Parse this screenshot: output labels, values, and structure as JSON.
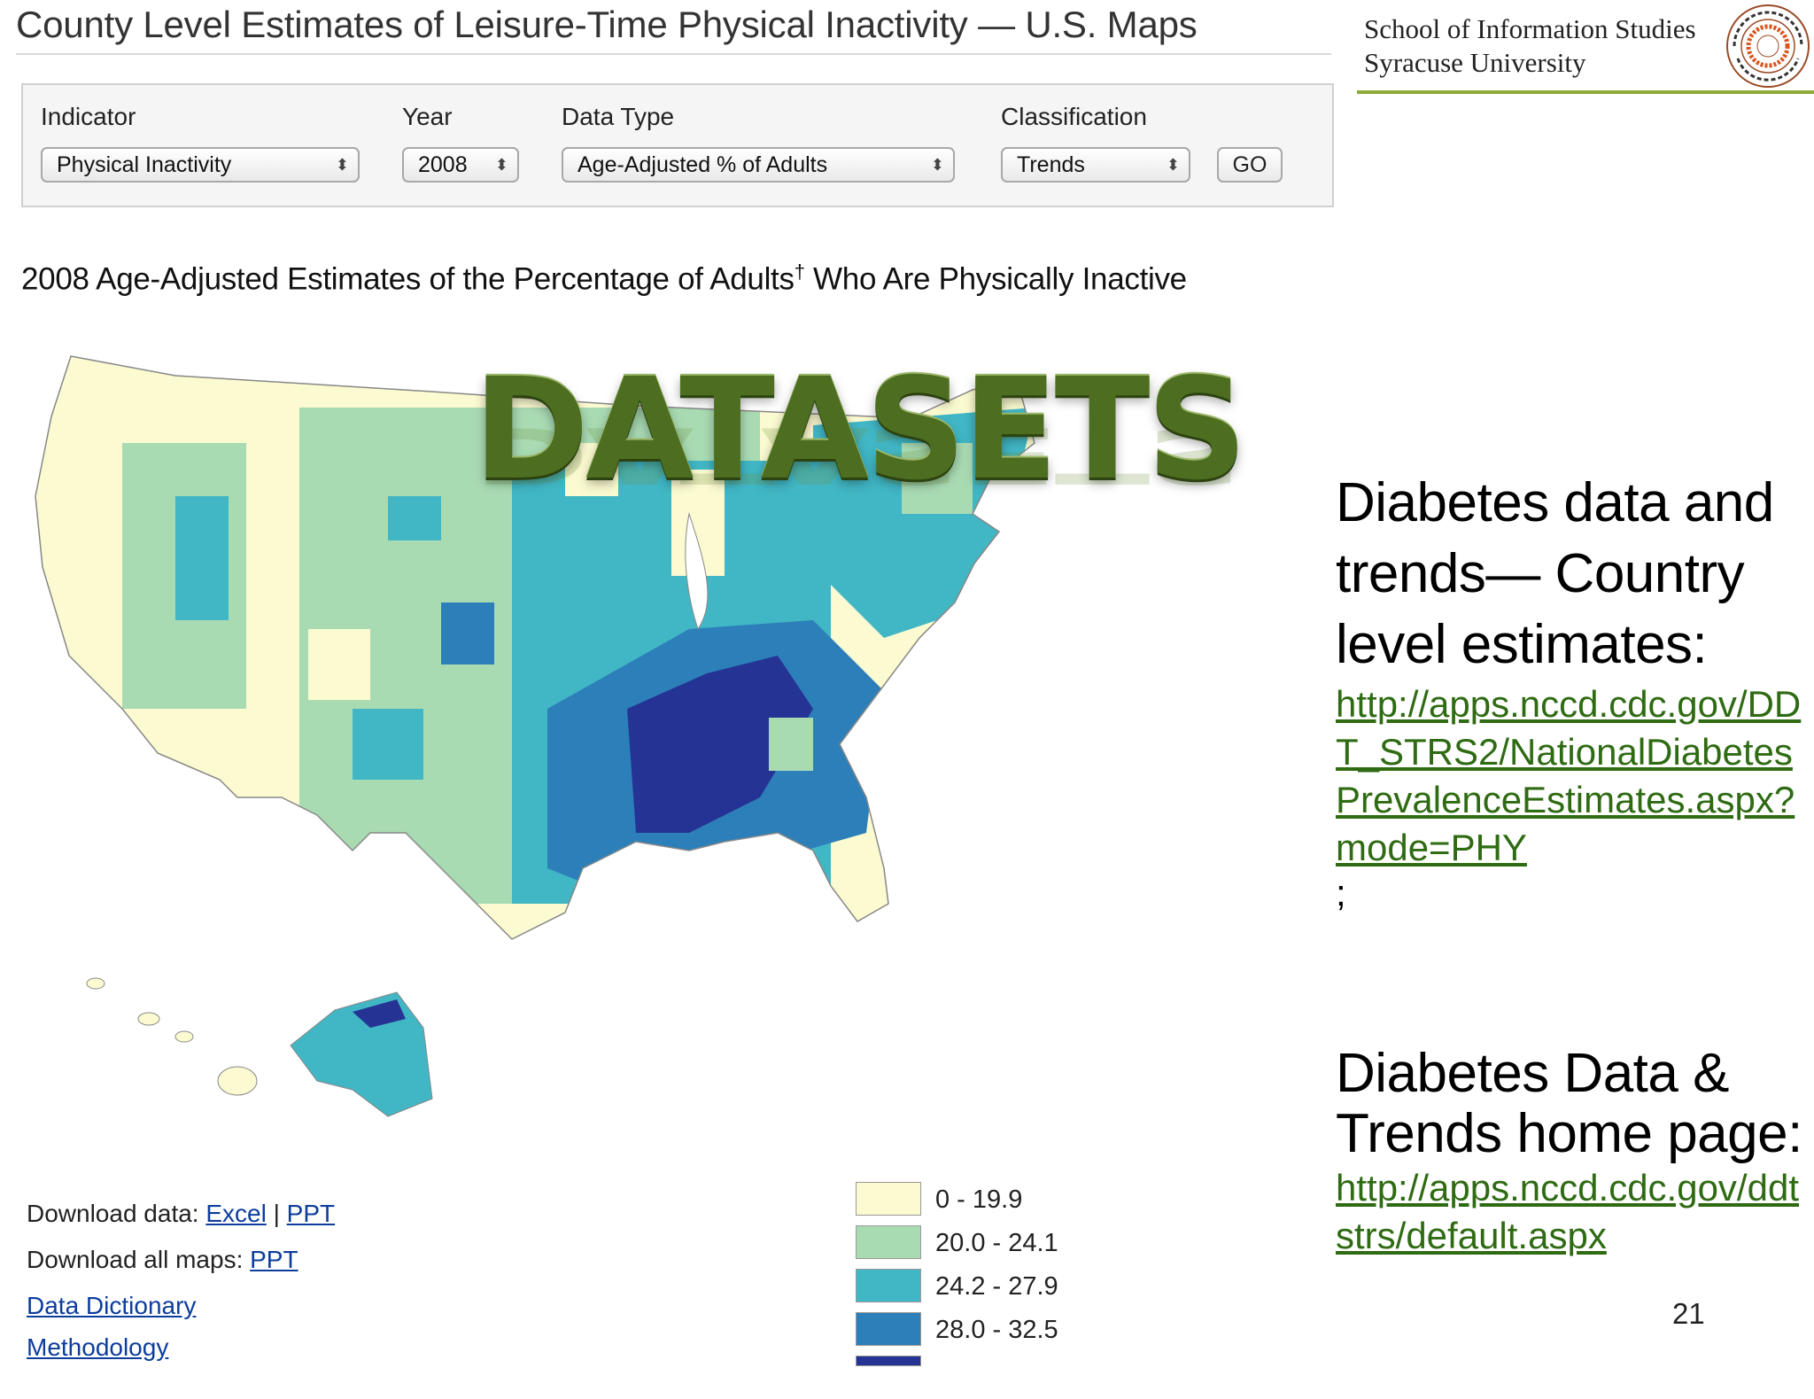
{
  "header": {
    "title": "County Level Estimates of Leisure-Time Physical Inactivity — U.S. Maps",
    "brand_line1": "School of Information Studies",
    "brand_line2": "Syracuse University",
    "brand_accent": "#8cab3a",
    "seal_text": "SYRACUSE UNIVERSITY · FOUNDED AD 1870",
    "seal_center_text": "SUOS CULTORES SCIENTIA CORONAT"
  },
  "filters": {
    "indicator": {
      "label": "Indicator",
      "value": "Physical Inactivity"
    },
    "year": {
      "label": "Year",
      "value": "2008"
    },
    "data_type": {
      "label": "Data Type",
      "value": "Age-Adjusted % of Adults"
    },
    "classification": {
      "label": "Classification",
      "value": "Trends"
    },
    "go_label": "GO",
    "arrows_icon": "up-down-arrows-icon"
  },
  "map": {
    "title": "2008 Age-Adjusted Estimates of the Percentage of Adults",
    "title_mark": "†",
    "title_suffix": " Who Are Physically Inactive",
    "palette": [
      "#fbfad0",
      "#a9dbb3",
      "#41b6c4",
      "#2c7fb8",
      "#253494"
    ]
  },
  "slide": {
    "heading": "DATASETS",
    "heading_color": "#4d6e20",
    "block1": {
      "text": "Diabetes data and trends— Country level estimates:",
      "link": "http://apps.nccd.cdc.gov/DDT_STRS2/NationalDiabetesPrevalenceEstimates.aspx?mode=PHY",
      "after": " ;"
    },
    "block2": {
      "text": "Diabetes Data & Trends home page:",
      "link": "http://apps.nccd.cdc.gov/ddtstrs/default.aspx"
    },
    "page_number": "21"
  },
  "downloads": {
    "data_label": "Download data:",
    "excel": "Excel",
    "separator": "|",
    "ppt": "PPT",
    "maps_label": "Download all maps:",
    "maps_ppt": "PPT",
    "dictionary": "Data Dictionary",
    "methodology": "Methodology"
  },
  "legend": [
    {
      "label": "0 - 19.9",
      "color": "#fbfad0"
    },
    {
      "label": "20.0 - 24.1",
      "color": "#a9dbb3"
    },
    {
      "label": "24.2 - 27.9",
      "color": "#41b6c4"
    },
    {
      "label": "28.0 - 32.5",
      "color": "#2c7fb8"
    }
  ],
  "link_color": "#2f6b13"
}
